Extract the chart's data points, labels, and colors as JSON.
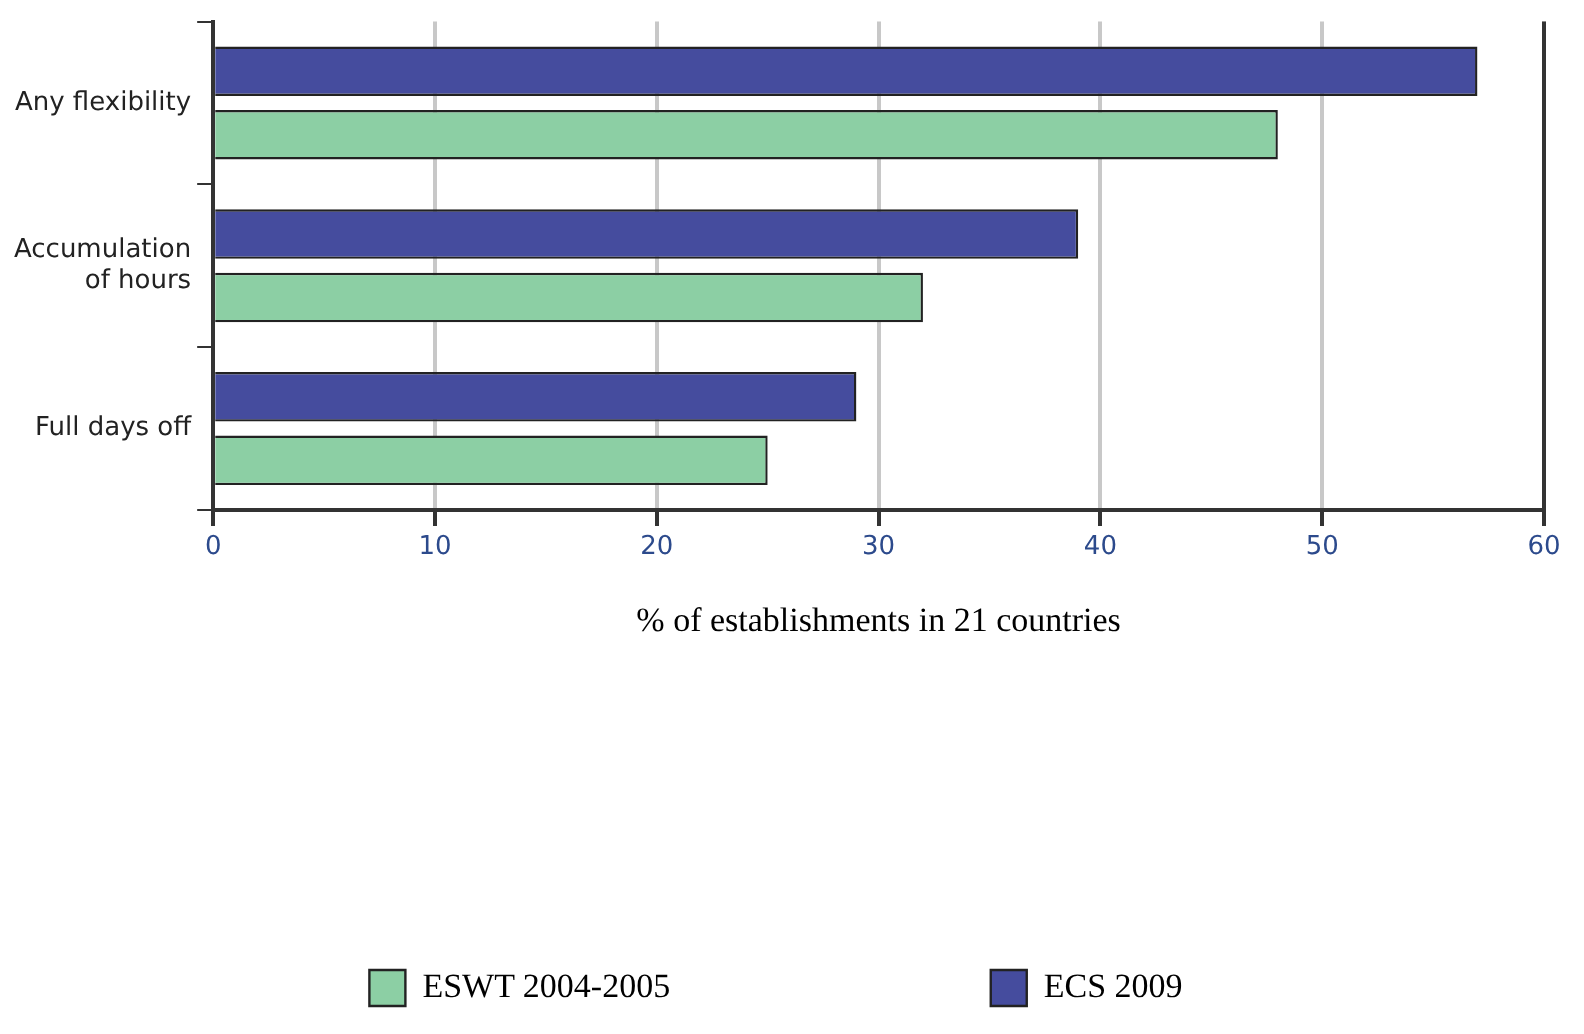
{
  "chart_data": {
    "type": "bar",
    "orientation": "horizontal",
    "categories": [
      "Any flexibility",
      "Accumulation\nof hours",
      "Full days off"
    ],
    "series": [
      {
        "name": "ECS 2009",
        "color": "#454c9e",
        "values": [
          57,
          39,
          29
        ]
      },
      {
        "name": "ESWT 2004-2005",
        "color": "#8ccfa4",
        "values": [
          48,
          32,
          25
        ]
      }
    ],
    "xlabel": "% of establishments in 21 countries",
    "xlim": [
      0,
      60
    ],
    "xticks": [
      0,
      10,
      20,
      30,
      40,
      50,
      60
    ],
    "grid": "x",
    "legend": "bottom"
  }
}
